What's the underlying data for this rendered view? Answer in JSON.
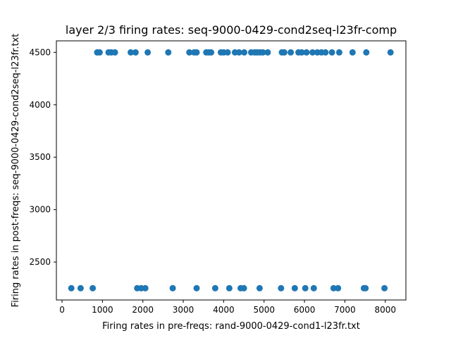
{
  "chart_data": {
    "type": "scatter",
    "title": "layer 2/3 firing rates: seq-9000-0429-cond2seq-l23fr-comp",
    "xlabel": "Firing rates in pre-freqs: rand-9000-0429-cond1-l23fr.txt",
    "ylabel": "Firing rates in post-freqs: seq-9000-0429-cond2seq-l23fr.txt",
    "xlim": [
      -140,
      8510
    ],
    "ylim": [
      2138,
      4610
    ],
    "xticks": [
      0,
      1000,
      2000,
      3000,
      4000,
      5000,
      6000,
      7000,
      8000
    ],
    "xtick_labels": [
      "0",
      "1000",
      "2000",
      "3000",
      "4000",
      "5000",
      "6000",
      "7000",
      "8000"
    ],
    "yticks": [
      2500,
      3000,
      3500,
      4000,
      4500
    ],
    "ytick_labels": [
      "2500",
      "3000",
      "3500",
      "4000",
      "4500"
    ],
    "marker_color": "#1f77b4",
    "grid": false,
    "points": [
      {
        "x": 870,
        "y": 4500
      },
      {
        "x": 930,
        "y": 4500
      },
      {
        "x": 1150,
        "y": 4500
      },
      {
        "x": 1220,
        "y": 4500
      },
      {
        "x": 1310,
        "y": 4500
      },
      {
        "x": 1700,
        "y": 4500
      },
      {
        "x": 1820,
        "y": 4500
      },
      {
        "x": 2120,
        "y": 4500
      },
      {
        "x": 2630,
        "y": 4500
      },
      {
        "x": 3150,
        "y": 4500
      },
      {
        "x": 3270,
        "y": 4500
      },
      {
        "x": 3330,
        "y": 4500
      },
      {
        "x": 3570,
        "y": 4500
      },
      {
        "x": 3630,
        "y": 4500
      },
      {
        "x": 3690,
        "y": 4500
      },
      {
        "x": 3930,
        "y": 4500
      },
      {
        "x": 4000,
        "y": 4500
      },
      {
        "x": 4100,
        "y": 4500
      },
      {
        "x": 4280,
        "y": 4500
      },
      {
        "x": 4380,
        "y": 4500
      },
      {
        "x": 4510,
        "y": 4500
      },
      {
        "x": 4680,
        "y": 4500
      },
      {
        "x": 4770,
        "y": 4500
      },
      {
        "x": 4830,
        "y": 4500
      },
      {
        "x": 4900,
        "y": 4500
      },
      {
        "x": 4970,
        "y": 4500
      },
      {
        "x": 5090,
        "y": 4500
      },
      {
        "x": 5440,
        "y": 4500
      },
      {
        "x": 5500,
        "y": 4500
      },
      {
        "x": 5660,
        "y": 4500
      },
      {
        "x": 5850,
        "y": 4500
      },
      {
        "x": 5930,
        "y": 4500
      },
      {
        "x": 6050,
        "y": 4500
      },
      {
        "x": 6200,
        "y": 4500
      },
      {
        "x": 6320,
        "y": 4500
      },
      {
        "x": 6420,
        "y": 4500
      },
      {
        "x": 6520,
        "y": 4500
      },
      {
        "x": 6680,
        "y": 4500
      },
      {
        "x": 6860,
        "y": 4500
      },
      {
        "x": 7190,
        "y": 4500
      },
      {
        "x": 7530,
        "y": 4500
      },
      {
        "x": 8130,
        "y": 4500
      },
      {
        "x": 230,
        "y": 2250
      },
      {
        "x": 460,
        "y": 2250
      },
      {
        "x": 760,
        "y": 2250
      },
      {
        "x": 1860,
        "y": 2250
      },
      {
        "x": 1960,
        "y": 2250
      },
      {
        "x": 2060,
        "y": 2250
      },
      {
        "x": 2740,
        "y": 2250
      },
      {
        "x": 3330,
        "y": 2250
      },
      {
        "x": 3790,
        "y": 2250
      },
      {
        "x": 4140,
        "y": 2250
      },
      {
        "x": 4420,
        "y": 2250
      },
      {
        "x": 4500,
        "y": 2250
      },
      {
        "x": 4890,
        "y": 2250
      },
      {
        "x": 5420,
        "y": 2250
      },
      {
        "x": 5760,
        "y": 2250
      },
      {
        "x": 6020,
        "y": 2250
      },
      {
        "x": 6230,
        "y": 2250
      },
      {
        "x": 6720,
        "y": 2250
      },
      {
        "x": 6830,
        "y": 2250
      },
      {
        "x": 7470,
        "y": 2250
      },
      {
        "x": 7510,
        "y": 2250
      },
      {
        "x": 7980,
        "y": 2250
      }
    ]
  }
}
